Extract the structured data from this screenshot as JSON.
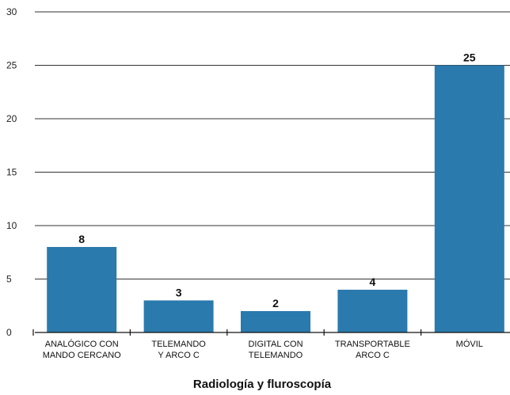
{
  "chart_data": {
    "type": "bar",
    "categories": [
      [
        "ANALÓGICO CON",
        "MANDO CERCANO"
      ],
      [
        "TELEMANDO",
        "Y ARCO C"
      ],
      [
        "DIGITAL CON",
        "TELEMANDO"
      ],
      [
        "TRANSPORTABLE",
        "ARCO C"
      ],
      [
        "MÓVIL"
      ]
    ],
    "values": [
      8,
      3,
      2,
      4,
      25
    ],
    "data_labels": [
      "8",
      "3",
      "2",
      "4",
      "25"
    ],
    "xlabel": "Radiología y fluroscopía",
    "ylabel": "",
    "ylim": [
      0,
      30
    ],
    "yticks": [
      0,
      5,
      10,
      15,
      20,
      25,
      30
    ],
    "grid": true,
    "bar_color": "#2a7aad"
  }
}
